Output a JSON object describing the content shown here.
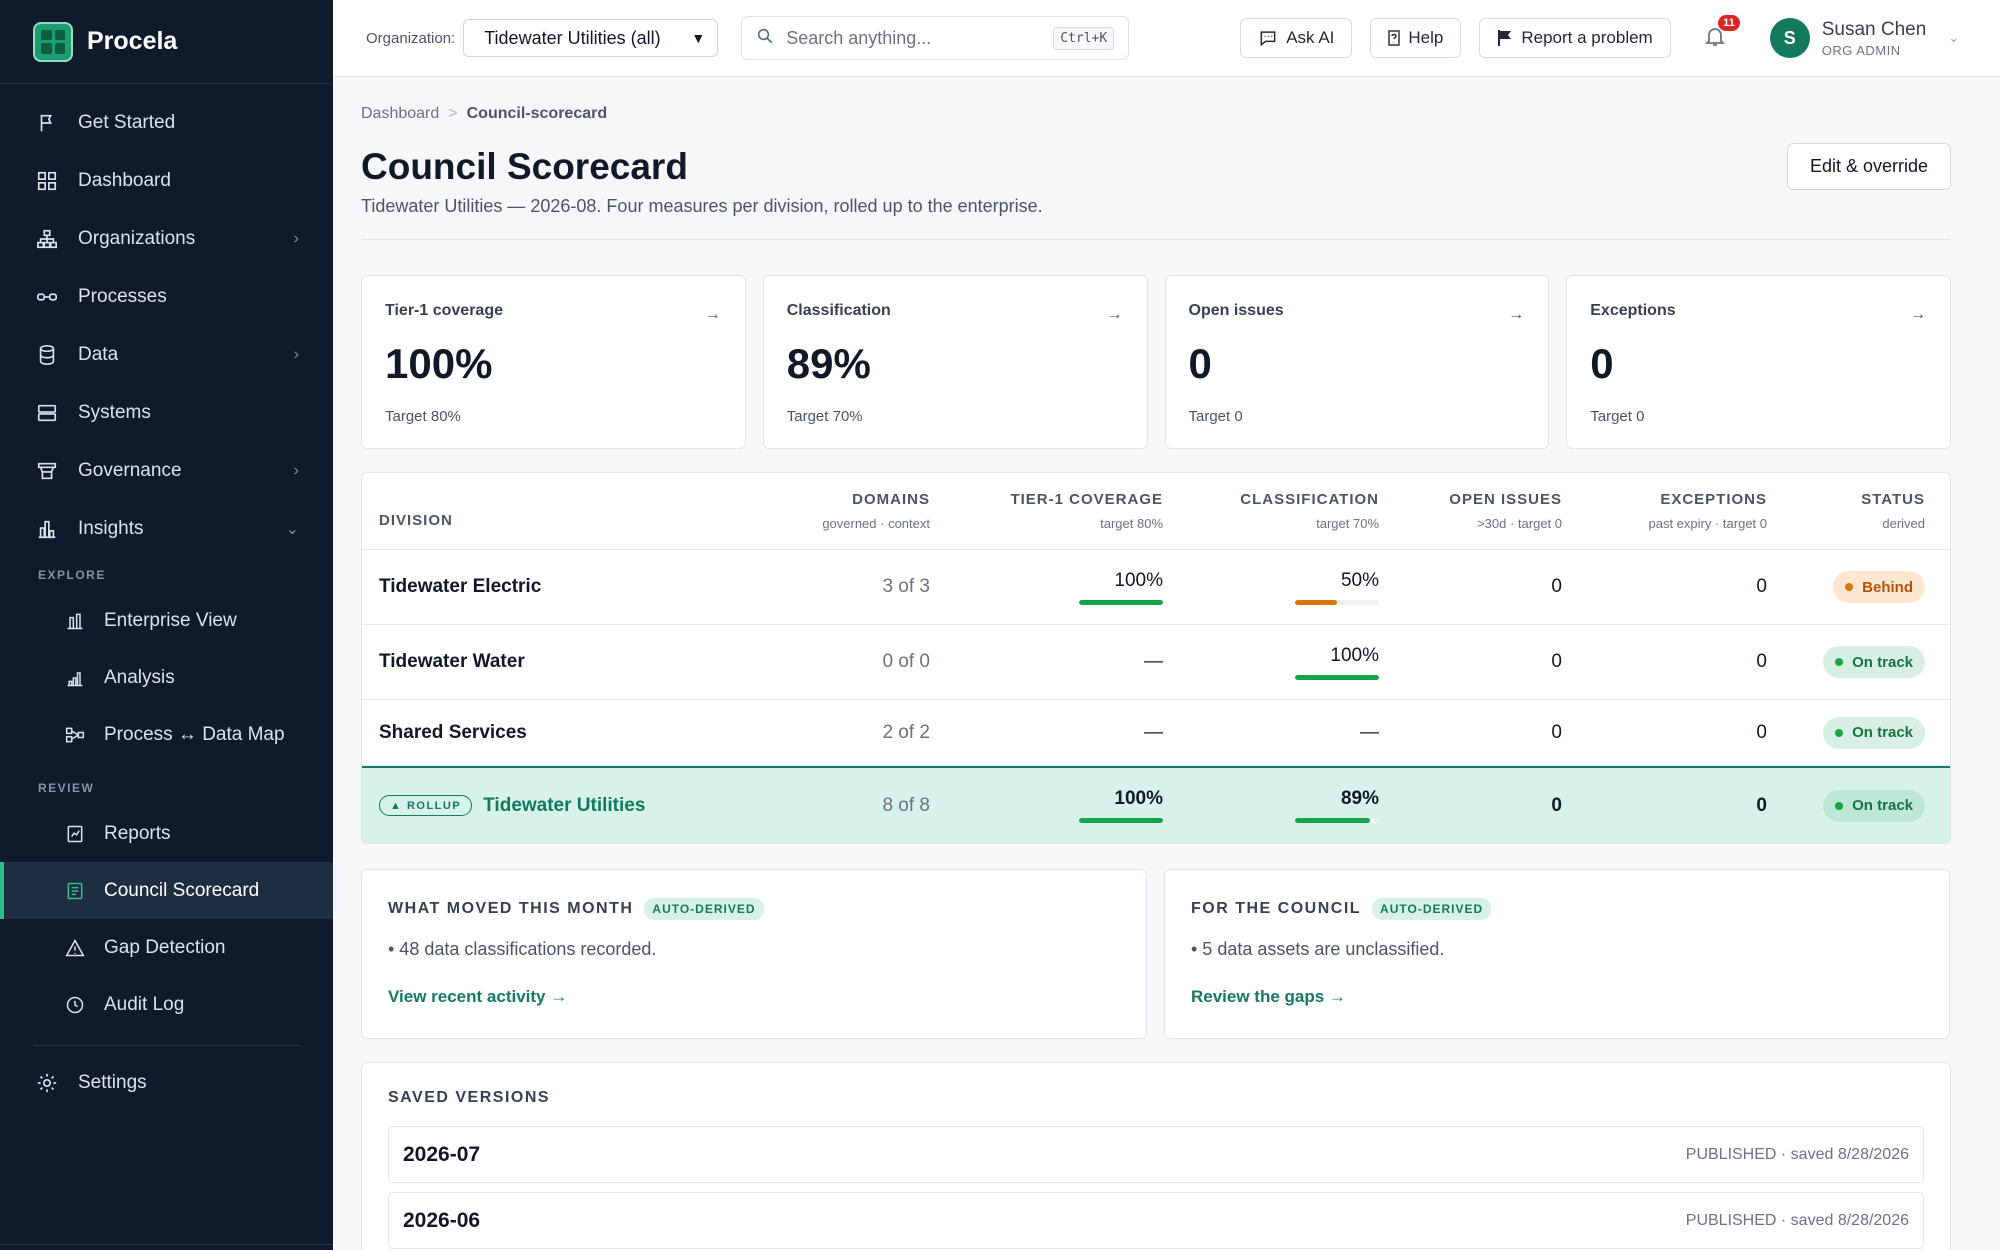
{
  "brand": {
    "name": "Procela",
    "accent": "#2bbf8a"
  },
  "sidebar": {
    "items": [
      {
        "label": "Get Started",
        "icon": "flag-icon"
      },
      {
        "label": "Dashboard",
        "icon": "grid-icon"
      },
      {
        "label": "Organizations",
        "icon": "org-chart-icon",
        "chevron": "›"
      },
      {
        "label": "Processes",
        "icon": "process-link-icon"
      },
      {
        "label": "Data",
        "icon": "database-icon",
        "chevron": "›"
      },
      {
        "label": "Systems",
        "icon": "server-icon"
      },
      {
        "label": "Governance",
        "icon": "governance-icon",
        "chevron": "›"
      },
      {
        "label": "Insights",
        "icon": "chart-icon",
        "chevron": "⌄"
      }
    ],
    "explore_label": "EXPLORE",
    "explore": [
      {
        "label": "Enterprise View",
        "icon": "bar-chart-icon"
      },
      {
        "label": "Analysis",
        "icon": "analysis-icon"
      },
      {
        "label": "Process ↔ Data Map",
        "icon": "map-icon"
      }
    ],
    "review_label": "REVIEW",
    "review": [
      {
        "label": "Reports",
        "icon": "report-icon"
      },
      {
        "label": "Council Scorecard",
        "icon": "scorecard-icon",
        "active": true
      },
      {
        "label": "Gap Detection",
        "icon": "warning-icon"
      },
      {
        "label": "Audit Log",
        "icon": "clock-icon"
      }
    ],
    "settings": {
      "label": "Settings",
      "icon": "gear-icon"
    }
  },
  "topbar": {
    "org_label": "Organization:",
    "org_value": "Tidewater Utilities (all)",
    "search_placeholder": "Search anything...",
    "search_shortcut": "Ctrl+K",
    "ask_ai": "Ask AI",
    "help": "Help",
    "report": "Report a problem",
    "notifications": "11",
    "user_name": "Susan Chen",
    "user_role": "ORG ADMIN",
    "user_initial": "S"
  },
  "page": {
    "breadcrumb_root": "Dashboard",
    "breadcrumb_sep": ">",
    "breadcrumb_current": "Council-scorecard",
    "title": "Council Scorecard",
    "edit_button": "Edit & override",
    "subtitle": "Tidewater Utilities — 2026-08. Four measures per division, rolled up to the enterprise."
  },
  "kpis": [
    {
      "label": "Tier-1 coverage",
      "value": "100%",
      "target": "Target 80%",
      "arrow": "→"
    },
    {
      "label": "Classification",
      "value": "89%",
      "target": "Target 70%",
      "arrow": "→"
    },
    {
      "label": "Open issues",
      "value": "0",
      "target": "Target 0",
      "arrow": "→"
    },
    {
      "label": "Exceptions",
      "value": "0",
      "target": "Target 0",
      "arrow": "→"
    }
  ],
  "table": {
    "headers": {
      "division": "DIVISION",
      "domains": "DOMAINS",
      "domains_sub": "governed · context",
      "tier1": "TIER-1 COVERAGE",
      "tier1_sub": "target 80%",
      "classification": "CLASSIFICATION",
      "classification_sub": "target 70%",
      "open": "OPEN ISSUES",
      "open_sub": ">30d · target 0",
      "exceptions": "EXCEPTIONS",
      "exceptions_sub": "past expiry · target 0",
      "status": "STATUS",
      "status_sub": "derived"
    },
    "rows": [
      {
        "division": "Tidewater Electric",
        "domains": "3 of 3",
        "tier1": "100%",
        "tier1_pct": 100,
        "classification": "50%",
        "classification_pct": 50,
        "open": "0",
        "exceptions": "0",
        "status": "Behind"
      },
      {
        "division": "Tidewater Water",
        "domains": "0 of 0",
        "tier1": "—",
        "classification": "100%",
        "classification_pct": 100,
        "open": "0",
        "exceptions": "0",
        "status": "On track"
      },
      {
        "division": "Shared Services",
        "domains": "2 of 2",
        "tier1": "—",
        "classification": "—",
        "open": "0",
        "exceptions": "0",
        "status": "On track"
      }
    ],
    "rollup": {
      "tag": "▲ ROLLUP",
      "division": "Tidewater Utilities",
      "domains": "8 of 8",
      "tier1": "100%",
      "tier1_pct": 100,
      "classification": "89%",
      "classification_pct": 89,
      "open": "0",
      "exceptions": "0",
      "status": "On track"
    }
  },
  "cards": {
    "moved": {
      "title": "WHAT MOVED THIS MONTH",
      "tag": "AUTO-DERIVED",
      "text": "• 48 data classifications recorded.",
      "link": "View recent activity →"
    },
    "council": {
      "title": "FOR THE COUNCIL",
      "tag": "AUTO-DERIVED",
      "text": "• 5 data assets are unclassified.",
      "link": "Review the gaps →"
    }
  },
  "versions": {
    "title": "SAVED VERSIONS",
    "items": [
      {
        "name": "2026-07",
        "meta": "PUBLISHED · saved 8/28/2026"
      },
      {
        "name": "2026-06",
        "meta": "PUBLISHED · saved 8/28/2026"
      }
    ]
  },
  "colors": {
    "green": "#16a34a",
    "orange": "#d97706",
    "rollup_bg": "#d6f2ea"
  }
}
